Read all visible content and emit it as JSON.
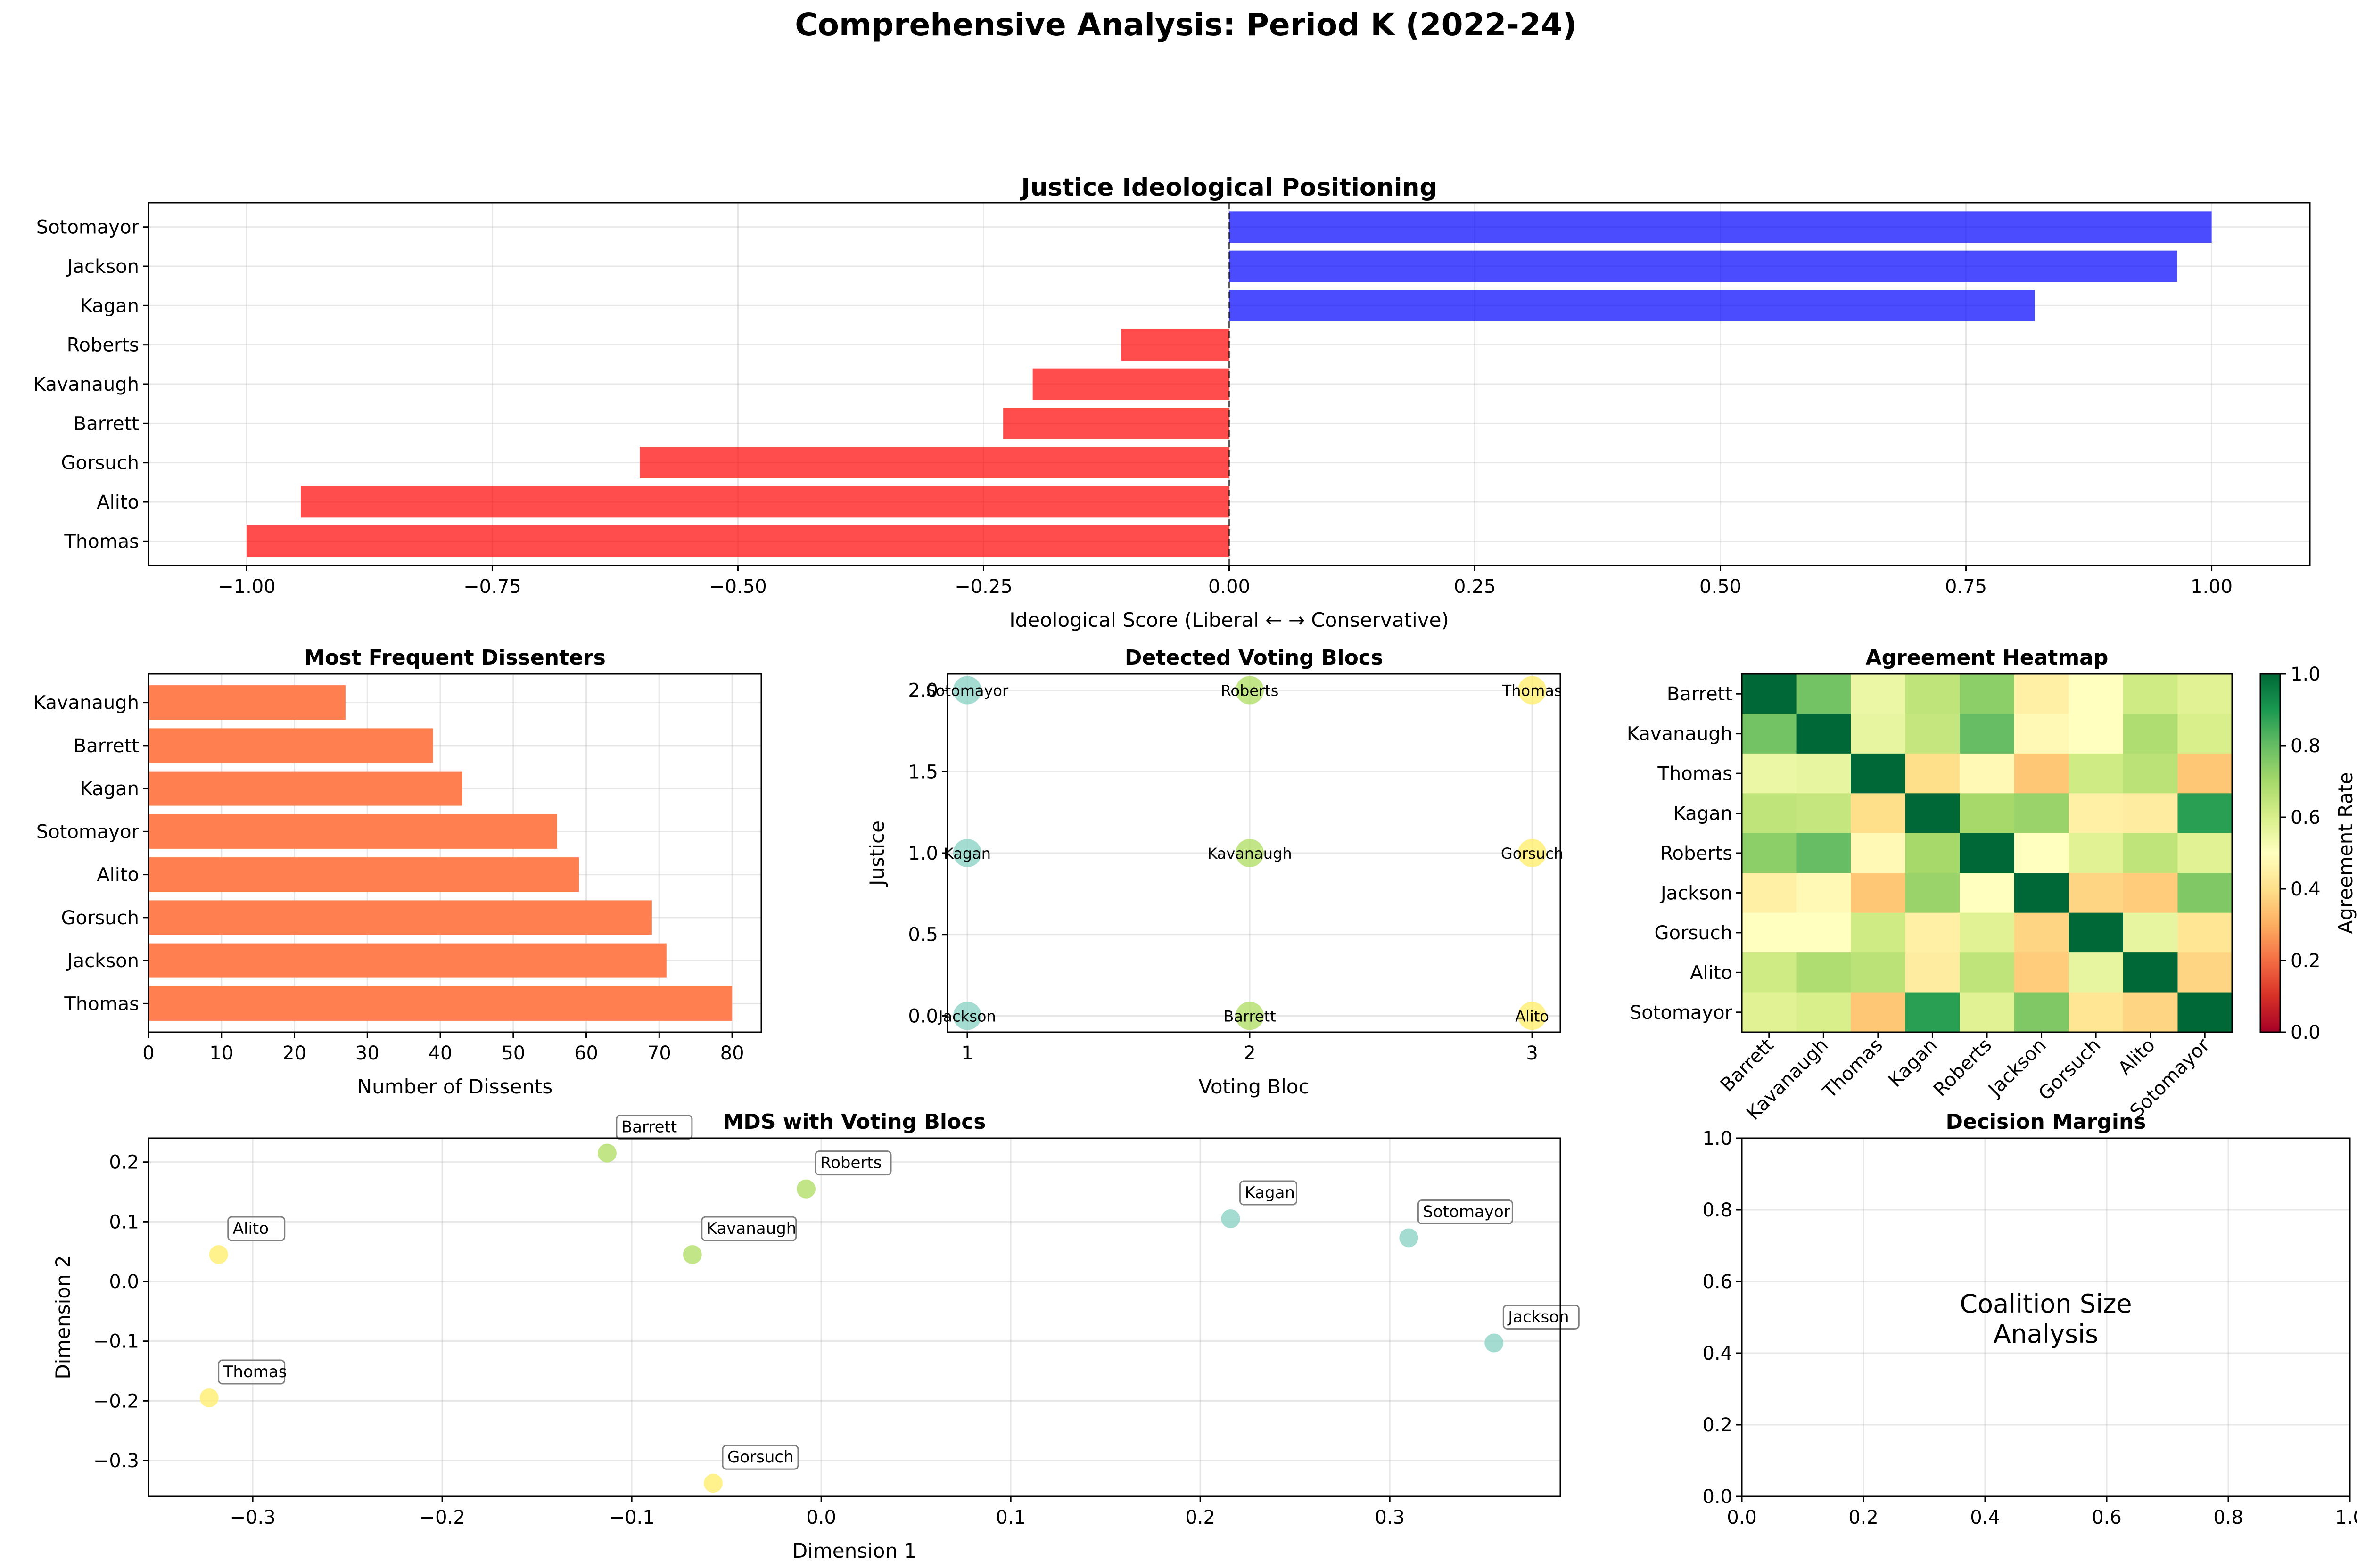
{
  "suptitle": "Comprehensive Analysis: Period K (2022-24)",
  "colors": {
    "liberal": "#0000ff",
    "conservative": "#ff0000",
    "dissent": "#ff7f50",
    "bloc1": "#8dd3c7",
    "bloc2": "#b3de69",
    "bloc3": "#ffed6f"
  },
  "chart_data": [
    {
      "id": "ideology",
      "type": "bar",
      "orientation": "horizontal",
      "title": "Justice Ideological Positioning",
      "xlabel": "Ideological Score (Liberal ← → Conservative)",
      "ylabel": "",
      "categories": [
        "Thomas",
        "Alito",
        "Gorsuch",
        "Barrett",
        "Kavanaugh",
        "Roberts",
        "Kagan",
        "Jackson",
        "Sotomayor"
      ],
      "values": [
        -1.0,
        -0.945,
        -0.6,
        -0.23,
        -0.2,
        -0.11,
        0.82,
        0.965,
        1.0
      ],
      "xlim": [
        -1.1,
        1.1
      ],
      "xticks": [
        "−1.00",
        "−0.75",
        "−0.50",
        "−0.25",
        "0.00",
        "0.25",
        "0.50",
        "0.75",
        "1.00"
      ],
      "grid": true
    },
    {
      "id": "dissenters",
      "type": "bar",
      "orientation": "horizontal",
      "title": "Most Frequent Dissenters",
      "xlabel": "Number of Dissents",
      "ylabel": "",
      "categories": [
        "Thomas",
        "Jackson",
        "Gorsuch",
        "Alito",
        "Sotomayor",
        "Kagan",
        "Barrett",
        "Kavanaugh"
      ],
      "values": [
        80,
        71,
        69,
        59,
        56,
        43,
        39,
        27
      ],
      "xlim": [
        0,
        84
      ],
      "xticks": [
        "0",
        "10",
        "20",
        "30",
        "40",
        "50",
        "60",
        "70",
        "80"
      ],
      "grid": true
    },
    {
      "id": "blocs",
      "type": "scatter",
      "title": "Detected Voting Blocs",
      "xlabel": "Voting Bloc",
      "ylabel": "Justice",
      "xlim": [
        0.93,
        3.1
      ],
      "ylim": [
        -0.1,
        2.1
      ],
      "xticks": [
        "1",
        "2",
        "3"
      ],
      "yticks": [
        "0.0",
        "0.5",
        "1.0",
        "1.5",
        "2.0"
      ],
      "points": [
        {
          "label": "Jackson",
          "x": 1,
          "y": 0,
          "bloc": 1
        },
        {
          "label": "Kagan",
          "x": 1,
          "y": 1,
          "bloc": 1
        },
        {
          "label": "Sotomayor",
          "x": 1,
          "y": 2,
          "bloc": 1
        },
        {
          "label": "Barrett",
          "x": 2,
          "y": 0,
          "bloc": 2
        },
        {
          "label": "Kavanaugh",
          "x": 2,
          "y": 1,
          "bloc": 2
        },
        {
          "label": "Roberts",
          "x": 2,
          "y": 2,
          "bloc": 2
        },
        {
          "label": "Alito",
          "x": 3,
          "y": 0,
          "bloc": 3
        },
        {
          "label": "Gorsuch",
          "x": 3,
          "y": 1,
          "bloc": 3
        },
        {
          "label": "Thomas",
          "x": 3,
          "y": 2,
          "bloc": 3
        }
      ],
      "grid": true
    },
    {
      "id": "heatmap",
      "type": "heatmap",
      "title": "Agreement Heatmap",
      "colorbar_label": "Agreement Rate",
      "colorbar_ticks": [
        "0.0",
        "0.2",
        "0.4",
        "0.6",
        "0.8",
        "1.0"
      ],
      "vmin": 0,
      "vmax": 1,
      "labels": [
        "Barrett",
        "Kavanaugh",
        "Thomas",
        "Kagan",
        "Roberts",
        "Jackson",
        "Gorsuch",
        "Alito",
        "Sotomayor"
      ],
      "matrix": [
        [
          1.0,
          0.78,
          0.55,
          0.65,
          0.74,
          0.45,
          0.5,
          0.62,
          0.58
        ],
        [
          0.78,
          1.0,
          0.56,
          0.64,
          0.8,
          0.48,
          0.5,
          0.68,
          0.6
        ],
        [
          0.55,
          0.56,
          1.0,
          0.4,
          0.48,
          0.35,
          0.62,
          0.66,
          0.35
        ],
        [
          0.65,
          0.64,
          0.4,
          1.0,
          0.7,
          0.72,
          0.45,
          0.44,
          0.88
        ],
        [
          0.74,
          0.8,
          0.48,
          0.7,
          1.0,
          0.5,
          0.58,
          0.65,
          0.58
        ],
        [
          0.45,
          0.48,
          0.35,
          0.72,
          0.5,
          1.0,
          0.38,
          0.36,
          0.76
        ],
        [
          0.5,
          0.5,
          0.62,
          0.45,
          0.58,
          0.38,
          1.0,
          0.56,
          0.42
        ],
        [
          0.62,
          0.68,
          0.66,
          0.44,
          0.65,
          0.36,
          0.56,
          1.0,
          0.38
        ],
        [
          0.58,
          0.6,
          0.35,
          0.88,
          0.58,
          0.76,
          0.42,
          0.38,
          1.0
        ]
      ]
    },
    {
      "id": "mds",
      "type": "scatter",
      "title": "MDS with Voting Blocs",
      "xlabel": "Dimension 1",
      "ylabel": "Dimension 2",
      "xlim": [
        -0.355,
        0.39
      ],
      "ylim": [
        -0.36,
        0.24
      ],
      "xticks": [
        "−0.3",
        "−0.2",
        "−0.1",
        "0.0",
        "0.1",
        "0.2",
        "0.3"
      ],
      "yticks": [
        "−0.3",
        "−0.2",
        "−0.1",
        "0.0",
        "0.1",
        "0.2"
      ],
      "points": [
        {
          "label": "Barrett",
          "x": -0.113,
          "y": 0.215,
          "bloc": 2
        },
        {
          "label": "Roberts",
          "x": -0.008,
          "y": 0.155,
          "bloc": 2
        },
        {
          "label": "Kavanaugh",
          "x": -0.068,
          "y": 0.045,
          "bloc": 2
        },
        {
          "label": "Alito",
          "x": -0.318,
          "y": 0.045,
          "bloc": 3
        },
        {
          "label": "Thomas",
          "x": -0.323,
          "y": -0.195,
          "bloc": 3
        },
        {
          "label": "Gorsuch",
          "x": -0.057,
          "y": -0.338,
          "bloc": 3
        },
        {
          "label": "Kagan",
          "x": 0.216,
          "y": 0.105,
          "bloc": 1
        },
        {
          "label": "Sotomayor",
          "x": 0.31,
          "y": 0.073,
          "bloc": 1
        },
        {
          "label": "Jackson",
          "x": 0.355,
          "y": -0.103,
          "bloc": 1
        }
      ],
      "grid": true
    },
    {
      "id": "margins",
      "type": "scatter",
      "title": "Decision Margins",
      "center_text": "Coalition Size\nAnalysis",
      "xlim": [
        0,
        1
      ],
      "ylim": [
        0,
        1
      ],
      "xticks": [
        "0.0",
        "0.2",
        "0.4",
        "0.6",
        "0.8",
        "1.0"
      ],
      "yticks": [
        "0.0",
        "0.2",
        "0.4",
        "0.6",
        "0.8",
        "1.0"
      ],
      "grid": true
    }
  ]
}
